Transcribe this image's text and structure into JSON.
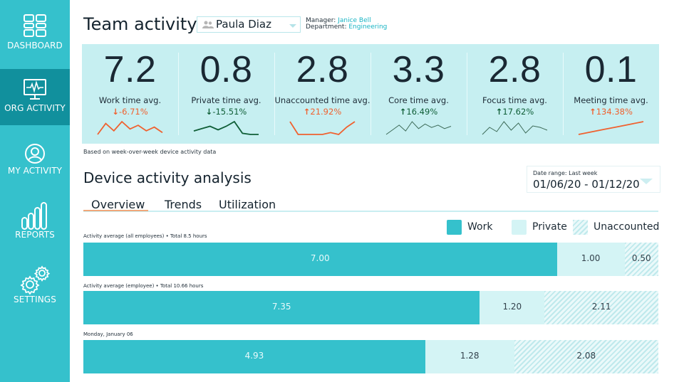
{
  "sidebar": {
    "items": [
      {
        "label": "DASHBOARD",
        "icon": "dashboard-icon"
      },
      {
        "label": "ORG ACTIVITY",
        "icon": "monitor-pulse-icon",
        "active": true
      },
      {
        "label": "MY ACTIVITY",
        "icon": "user-circle-icon"
      },
      {
        "label": "REPORTS",
        "icon": "bar-chart-icon"
      },
      {
        "label": "SETTINGS",
        "icon": "gears-icon"
      }
    ]
  },
  "header": {
    "title": "Team activity",
    "employee": "Paula Diaz",
    "manager_label": "Manager:",
    "manager": "Janice Bell",
    "department_label": "Department:",
    "department": "Engineering"
  },
  "kpis": [
    {
      "value": "7.2",
      "label": "Work time avg.",
      "delta": "-6.71%",
      "arrow": "↓",
      "trend": "down",
      "spark": [
        4,
        10,
        6,
        11,
        7,
        9,
        6,
        8,
        5
      ]
    },
    {
      "value": "0.8",
      "label": "Private time avg.",
      "delta": "-15.51%",
      "arrow": "↓",
      "trend": "up-good",
      "spark": [
        5,
        7,
        9,
        6,
        9,
        13,
        3,
        2,
        2
      ]
    },
    {
      "value": "2.8",
      "label": "Unaccounted time avg.",
      "delta": "21.92%",
      "arrow": "↑",
      "trend": "up-bad",
      "spark": [
        10,
        3,
        3,
        3,
        3,
        4,
        3,
        7,
        10
      ]
    },
    {
      "value": "3.3",
      "label": "Core time avg.",
      "delta": "16.49%",
      "arrow": "↑",
      "trend": "up-good",
      "spark": [
        3,
        7,
        11,
        6,
        14,
        8,
        12,
        9,
        11,
        8,
        10
      ]
    },
    {
      "value": "2.8",
      "label": "Focus time avg.",
      "delta": "17.62%",
      "arrow": "↑",
      "trend": "up-good",
      "spark": [
        4,
        9,
        6,
        13,
        7,
        12,
        5,
        10,
        9,
        7
      ]
    },
    {
      "value": "0.1",
      "label": "Meeting time avg.",
      "delta": "134.38%",
      "arrow": "↑",
      "trend": "up-bad",
      "spark": [
        2,
        3,
        4,
        5,
        6,
        7
      ]
    }
  ],
  "note": "Based on week-over-week device activity data",
  "analysis": {
    "title": "Device activity analysis",
    "date_range_label": "Date range: Last week",
    "date_range_value": "01/06/20 - 01/12/20",
    "tabs": [
      "Overview",
      "Trends",
      "Utilization"
    ],
    "legend": [
      {
        "label": "Work",
        "kind": "work"
      },
      {
        "label": "Private",
        "kind": "private"
      },
      {
        "label": "Unaccounted",
        "kind": "unacc"
      }
    ],
    "rows": [
      {
        "caption": "Activity average (all employees) • Total 8.5 hours",
        "work": 7.0,
        "private": 1.0,
        "unaccounted": 0.5,
        "labels": [
          "7.00",
          "1.00",
          "0.50"
        ]
      },
      {
        "caption": "Activity average (employee) • Total 10.66 hours",
        "work": 7.35,
        "private": 1.2,
        "unaccounted": 2.11,
        "labels": [
          "7.35",
          "1.20",
          "2.11"
        ]
      },
      {
        "caption": "Monday, January 06",
        "work": 4.93,
        "private": 1.28,
        "unaccounted": 2.08,
        "labels": [
          "4.93",
          "1.28",
          "2.08"
        ]
      }
    ]
  },
  "colors": {
    "sidebar": "#35c1cc",
    "sidebar_active": "#11909d",
    "kpi_band": "#c6eff1",
    "work": "#35c1cc",
    "private": "#d4f4f5",
    "negative": "#f0612f",
    "positive": "#0f5e37"
  }
}
